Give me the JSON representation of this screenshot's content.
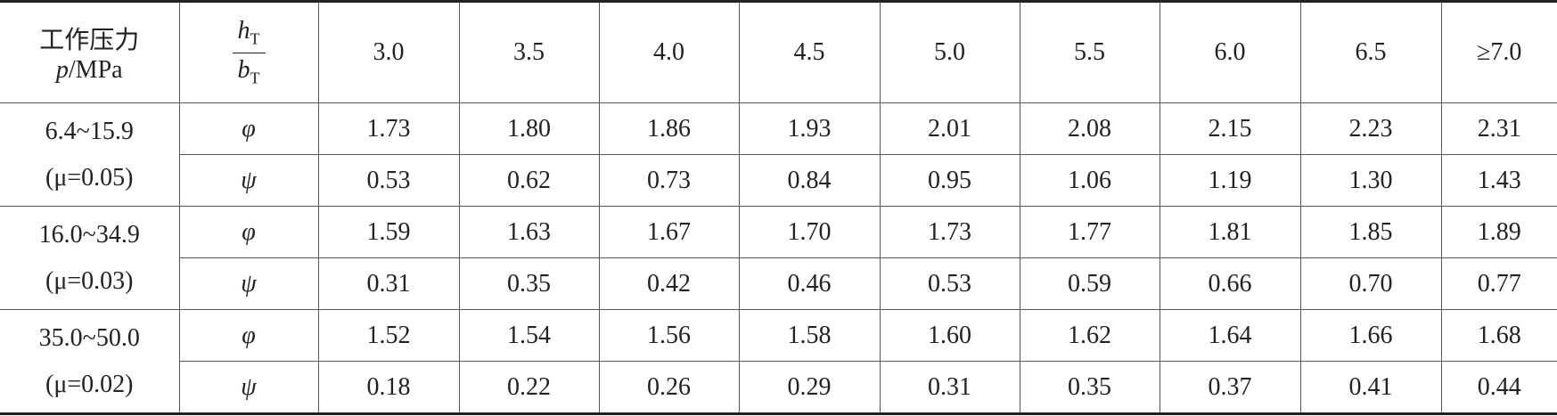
{
  "table": {
    "header": {
      "pressure_label": "工作压力",
      "unit_symbol": "p",
      "unit": "/MPa",
      "ratio_numerator": "h",
      "ratio_numerator_sub": "T",
      "ratio_denominator": "b",
      "ratio_denominator_sub": "T",
      "columns": [
        "3.0",
        "3.5",
        "4.0",
        "4.5",
        "5.0",
        "5.5",
        "6.0",
        "6.5",
        "≥7.0"
      ]
    },
    "groups": [
      {
        "range": "6.4~15.9",
        "condition": "(μ=0.05)",
        "rows": [
          {
            "symbol": "φ",
            "values": [
              "1.73",
              "1.80",
              "1.86",
              "1.93",
              "2.01",
              "2.08",
              "2.15",
              "2.23",
              "2.31"
            ]
          },
          {
            "symbol": "ψ",
            "values": [
              "0.53",
              "0.62",
              "0.73",
              "0.84",
              "0.95",
              "1.06",
              "1.19",
              "1.30",
              "1.43"
            ]
          }
        ]
      },
      {
        "range": "16.0~34.9",
        "condition": "(μ=0.03)",
        "rows": [
          {
            "symbol": "φ",
            "values": [
              "1.59",
              "1.63",
              "1.67",
              "1.70",
              "1.73",
              "1.77",
              "1.81",
              "1.85",
              "1.89"
            ]
          },
          {
            "symbol": "ψ",
            "values": [
              "0.31",
              "0.35",
              "0.42",
              "0.46",
              "0.53",
              "0.59",
              "0.66",
              "0.70",
              "0.77"
            ]
          }
        ]
      },
      {
        "range": "35.0~50.0",
        "condition": "(μ=0.02)",
        "rows": [
          {
            "symbol": "φ",
            "values": [
              "1.52",
              "1.54",
              "1.56",
              "1.58",
              "1.60",
              "1.62",
              "1.64",
              "1.66",
              "1.68"
            ]
          },
          {
            "symbol": "ψ",
            "values": [
              "0.18",
              "0.22",
              "0.26",
              "0.29",
              "0.31",
              "0.35",
              "0.37",
              "0.41",
              "0.44"
            ]
          }
        ]
      }
    ]
  }
}
